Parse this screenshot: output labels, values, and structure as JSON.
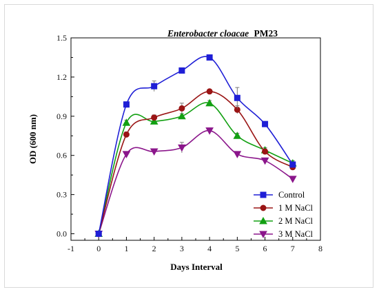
{
  "chart_data": {
    "type": "line",
    "title_italic": "Enterobacter cloacae",
    "title_bold": "PM23",
    "xlabel": "Days Interval",
    "ylabel": "OD (600 nm)",
    "xlim": [
      -1,
      8
    ],
    "ylim": [
      -0.05,
      1.5
    ],
    "x_ticks": [
      -1,
      0,
      1,
      2,
      3,
      4,
      5,
      6,
      7,
      8
    ],
    "y_ticks": [
      0.0,
      0.3,
      0.6,
      0.9,
      1.2,
      1.5
    ],
    "y_tick_labels": [
      "0.0",
      "0.3",
      "0.6",
      "0.9",
      "1.2",
      "1.5"
    ],
    "legend_position": "bottom-right",
    "x": [
      0,
      1,
      2,
      3,
      4,
      5,
      6,
      7
    ],
    "series": [
      {
        "name": "Control",
        "color": "#1f1fd6",
        "marker": "square",
        "values": [
          0.0,
          0.99,
          1.13,
          1.25,
          1.35,
          1.04,
          0.84,
          0.53
        ],
        "errors": [
          0.01,
          0.02,
          0.04,
          0.02,
          0.01,
          0.08,
          0.02,
          0.02
        ]
      },
      {
        "name": "1 M NaCl",
        "color": "#9a1515",
        "marker": "circle",
        "values": [
          0.0,
          0.76,
          0.89,
          0.96,
          1.09,
          0.95,
          0.63,
          0.51
        ],
        "errors": [
          0.01,
          0.02,
          0.02,
          0.04,
          0.01,
          0.03,
          0.02,
          0.02
        ]
      },
      {
        "name": "2 M NaCl",
        "color": "#12a012",
        "marker": "triangle-up",
        "values": [
          0.0,
          0.85,
          0.86,
          0.9,
          1.0,
          0.75,
          0.64,
          0.54
        ],
        "errors": [
          0.01,
          0.02,
          0.02,
          0.02,
          0.02,
          0.02,
          0.02,
          0.02
        ]
      },
      {
        "name": "3 M NaCl",
        "color": "#8b168b",
        "marker": "triangle-down",
        "values": [
          0.0,
          0.61,
          0.63,
          0.66,
          0.79,
          0.61,
          0.56,
          0.42
        ],
        "errors": [
          0.01,
          0.02,
          0.02,
          0.04,
          0.02,
          0.02,
          0.02,
          0.02
        ]
      }
    ]
  }
}
